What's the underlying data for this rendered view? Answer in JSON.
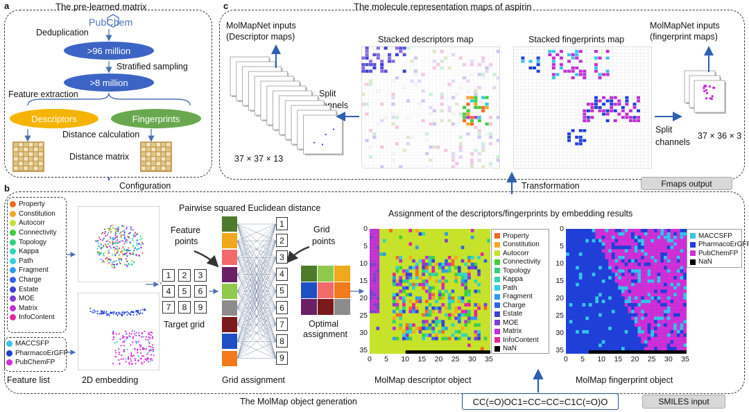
{
  "panel_a": {
    "letter": "a",
    "title": "The pre-learned matrix",
    "logo_text": "PubChem",
    "dedup": "Deduplication",
    "pill1": ">96 million",
    "sampling": "Stratified sampling",
    "pill2": ">8 million",
    "extraction": "Feature extraction",
    "descriptors": "Descriptors",
    "fingerprints": "Fingerprints",
    "distance_calc": "Distance calculation",
    "distance_matrix": "Distance matrix"
  },
  "panel_c": {
    "letter": "c",
    "title": "The molecule representation maps of aspirin",
    "inputs_desc_1": "MolMapNet inputs",
    "inputs_desc_2": "(Descriptor maps)",
    "split1_1": "Split",
    "split1_2": "channels",
    "shape_desc": "37 × 37 × 13",
    "stacked_desc": "Stacked descriptors map",
    "stacked_fp": "Stacked fingerprints map",
    "inputs_fp_1": "MolMapNet inputs",
    "inputs_fp_2": "(fingerprint maps)",
    "split2_1": "Split",
    "split2_2": "channels",
    "shape_fp": "37 × 36 × 3",
    "fmaps_output": "Fmaps output"
  },
  "configuration": "Configuration",
  "transformation": "Transformation",
  "panel_b": {
    "letter": "b",
    "descriptor_legend": [
      {
        "label": "Property",
        "color": "#f26a21"
      },
      {
        "label": "Constitution",
        "color": "#f5a623"
      },
      {
        "label": "Autocorr",
        "color": "#c6e22a"
      },
      {
        "label": "Connectivity",
        "color": "#3fcf3a"
      },
      {
        "label": "Topology",
        "color": "#2fd17a"
      },
      {
        "label": "Kappa",
        "color": "#31d6b4"
      },
      {
        "label": "Path",
        "color": "#2fd0e0"
      },
      {
        "label": "Fragment",
        "color": "#2f9bf0"
      },
      {
        "label": "Charge",
        "color": "#2d64e8"
      },
      {
        "label": "Estate",
        "color": "#3b3fd6"
      },
      {
        "label": "MOE",
        "color": "#7c3ed6"
      },
      {
        "label": "Matrix",
        "color": "#c12fd6"
      },
      {
        "label": "InfoContent",
        "color": "#e8259a"
      }
    ],
    "fingerprint_legend": [
      {
        "label": "MACCSFP",
        "color": "#35c6ea"
      },
      {
        "label": "PharmacoErGFP",
        "color": "#1f3fd8"
      },
      {
        "label": "PubChemFP",
        "color": "#d22fd6"
      }
    ],
    "feature_list": "Feature list",
    "embedding_2d": "2D embedding",
    "pairwise": "Pairwise squared Euclidean distance",
    "feature_points_1": "Feature",
    "feature_points_2": "points",
    "grid_points_1": "Grid",
    "grid_points_2": "points",
    "target_grid": "Target grid",
    "target_numbers": [
      "1",
      "2",
      "3",
      "4",
      "5",
      "6",
      "7",
      "8",
      "9"
    ],
    "grid_numbers": [
      "1",
      "2",
      "3",
      "4",
      "5",
      "6",
      "7",
      "8",
      "9"
    ],
    "feature_colors": [
      "#4e7a2c",
      "#f0a81c",
      "#f26a6a",
      "#6b1f64",
      "#8fc94e",
      "#8c8c8c",
      "#7a1a1a",
      "#1f4fc4",
      "#f07a1c"
    ],
    "optimal_colors": [
      "#4e7a2c",
      "#8fc94e",
      "#f0a81c",
      "#1f4fc4",
      "#f26a6a",
      "#f07a1c",
      "#6b1f64",
      "#7a1a1a",
      "#8c8c8c"
    ],
    "optimal_1": "Optimal",
    "optimal_2": "assignment",
    "grid_assignment": "Grid assignment",
    "assignment_title": "Assignment of the descriptors/fingerprints by embedding results",
    "y_ticks": [
      "0",
      "5",
      "10",
      "15",
      "20",
      "25",
      "30",
      "35"
    ],
    "x_ticks": [
      "0",
      "5",
      "10",
      "15",
      "20",
      "25",
      "30",
      "35"
    ],
    "desc_map_legend": [
      {
        "label": "Property",
        "color": "#f26a21"
      },
      {
        "label": "Constitution",
        "color": "#f5a623"
      },
      {
        "label": "Autocorr",
        "color": "#c6e22a"
      },
      {
        "label": "Connectivity",
        "color": "#3fcf3a"
      },
      {
        "label": "Topology",
        "color": "#2fd17a"
      },
      {
        "label": "Kappa",
        "color": "#31d6b4"
      },
      {
        "label": "Path",
        "color": "#2fd0e0"
      },
      {
        "label": "Fragment",
        "color": "#2f9bf0"
      },
      {
        "label": "Charge",
        "color": "#2d64e8"
      },
      {
        "label": "Estate",
        "color": "#3b3fd6"
      },
      {
        "label": "MOE",
        "color": "#7c3ed6"
      },
      {
        "label": "Matrix",
        "color": "#c12fd6"
      },
      {
        "label": "InfoContent",
        "color": "#e8259a"
      },
      {
        "label": "NaN",
        "color": "#000000"
      }
    ],
    "fp_map_legend": [
      {
        "label": "MACCSFP",
        "color": "#35c6ea"
      },
      {
        "label": "PharmacoErGFP",
        "color": "#1f3fd8"
      },
      {
        "label": "PubChemFP",
        "color": "#d22fd6"
      },
      {
        "label": "NaN",
        "color": "#000000"
      }
    ],
    "desc_object": "MolMap descriptor object",
    "fp_object": "MolMap fingerprint object",
    "footer": "The MolMap object generation",
    "smiles": "CC(=O)OC1=CC=CC=C1C(=O)O",
    "smiles_input": "SMILES input"
  }
}
